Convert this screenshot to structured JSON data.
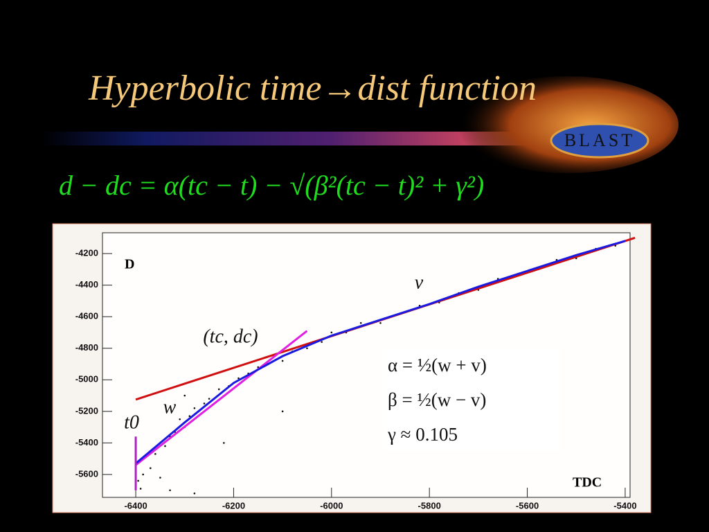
{
  "title": "Hyperbolic  time→dist  function",
  "formula": "d − dc = α(tc − t) − √(β²(tc − t)² + γ²)",
  "logo": "BLAST",
  "chart_data": {
    "type": "scatter",
    "x_label": "TDC",
    "y_label": "D",
    "xlim": [
      -6468,
      -5390
    ],
    "ylim": [
      -5745,
      -4068
    ],
    "xticks": [
      -6400,
      -6200,
      -6000,
      -5800,
      -5600,
      -5400
    ],
    "yticks": [
      -5600,
      -5400,
      -5200,
      -5000,
      -4800,
      -4600,
      -4400,
      -4200
    ],
    "annotations": [
      "v",
      "w",
      "(tc, dc)",
      "t0"
    ],
    "equations": [
      "α  =  ½(w + v)",
      "β  =  ½(w − v)",
      "γ  ≈  0.105"
    ],
    "series": [
      {
        "type": "scatter",
        "color": "#111111",
        "x": [
          -6395,
          -6390,
          -6385,
          -6370,
          -6360,
          -6350,
          -6340,
          -6330,
          -6320,
          -6310,
          -6300,
          -6290,
          -6280,
          -6260,
          -6250,
          -6230,
          -6210,
          -6190,
          -6170,
          -6150,
          -6130,
          -6100,
          -6080,
          -6050,
          -6020,
          -6000,
          -5970,
          -5940,
          -5900,
          -5860,
          -5820,
          -5780,
          -5740,
          -5700,
          -5660,
          -5620,
          -5580,
          -5540,
          -5500,
          -5460,
          -5420,
          -6330,
          -6280,
          -6220,
          -6100,
          -6300
        ],
        "values": [
          -5640,
          -5690,
          -5600,
          -5560,
          -5470,
          -5620,
          -5420,
          -5360,
          -5330,
          -5250,
          -5300,
          -5230,
          -5180,
          -5150,
          -5120,
          -5060,
          -5040,
          -4990,
          -4960,
          -4920,
          -4900,
          -4880,
          -4820,
          -4800,
          -4760,
          -4700,
          -4700,
          -4640,
          -4640,
          -4580,
          -4530,
          -4510,
          -4450,
          -4430,
          -4360,
          -4330,
          -4290,
          -4240,
          -4230,
          -4170,
          -4150,
          -5700,
          -5720,
          -5400,
          -5200,
          -5100
        ]
      },
      {
        "type": "line",
        "color": "#d01010",
        "x": [
          -6400,
          -5380
        ],
        "values": [
          -5125,
          -4100
        ]
      },
      {
        "type": "line",
        "color": "#e020e0",
        "x": [
          -6400,
          -6050
        ],
        "values": [
          -5540,
          -4690
        ]
      },
      {
        "type": "line",
        "color": "#1a1ae0",
        "x": [
          -6400,
          -6300,
          -6200,
          -6100,
          -6000,
          -5900,
          -5800,
          -5700,
          -5600,
          -5500,
          -5400
        ],
        "values": [
          -5530,
          -5270,
          -5020,
          -4850,
          -4720,
          -4620,
          -4520,
          -4410,
          -4310,
          -4210,
          -4120
        ]
      },
      {
        "type": "line",
        "color": "#b020c0",
        "x": [
          -6400,
          -6400
        ],
        "values": [
          -5360,
          -5700
        ]
      }
    ]
  }
}
